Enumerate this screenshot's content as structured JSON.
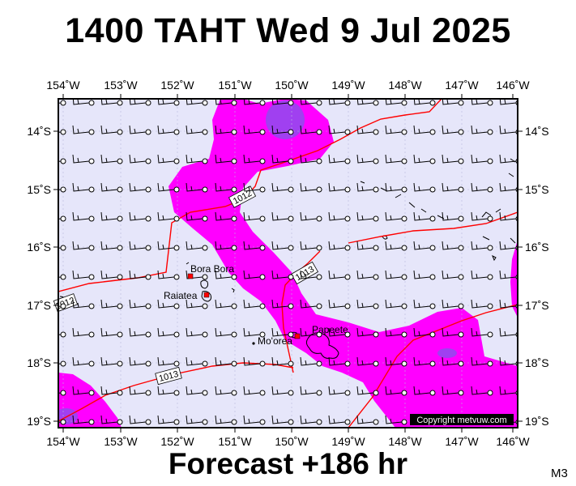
{
  "title": "1400 TAHT Wed 9 Jul 2025",
  "forecast": "Forecast +186 hr",
  "model_code": "M3",
  "copyright": "Copyright metvuw.com",
  "colors": {
    "background": "#e6e6fa",
    "rain_light": "#ff00ff",
    "rain_medium": "#a040f0",
    "isobar": "#ff0000",
    "land_marker": "#ff0000"
  },
  "lon_labels": [
    "154˚W",
    "153˚W",
    "152˚W",
    "151˚W",
    "150˚W",
    "149˚W",
    "148˚W",
    "147˚W",
    "146˚W"
  ],
  "lat_labels": [
    "14˚S",
    "15˚S",
    "16˚S",
    "17˚S",
    "18˚S",
    "19˚S"
  ],
  "isobars": [
    {
      "label": "1012"
    },
    {
      "label": "1013"
    },
    {
      "label": "1013"
    },
    {
      "label": "1012"
    }
  ],
  "places": [
    {
      "name": "Bora Bora"
    },
    {
      "name": "Raiatea"
    },
    {
      "name": "Mo'orea"
    },
    {
      "name": "Papeete"
    }
  ],
  "wind_barbs": {
    "symbol": "wind-barb-icon"
  }
}
